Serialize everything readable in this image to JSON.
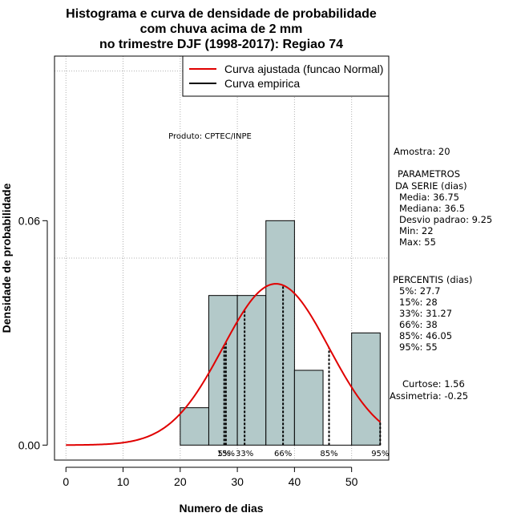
{
  "chart_data": {
    "type": "bar",
    "title_lines": [
      "Histograma e curva de densidade de probabilidade",
      "com chuva acima de 2 mm",
      "no trimestre DJF (1998-2017): Regiao 74"
    ],
    "xlabel": "Numero de dias",
    "ylabel": "Densidade de probabilidade",
    "xlim": [
      -2,
      56.5
    ],
    "ylim": [
      -0.004,
      0.104
    ],
    "x_ticks": [
      0,
      10,
      20,
      30,
      40,
      50
    ],
    "y_ticks": [
      0.0,
      0.06
    ],
    "y_tick_labels": [
      "0.00",
      "0.06"
    ],
    "grid_x": [
      0,
      10,
      20,
      30,
      40,
      50
    ],
    "grid_y": [
      0.05,
      0.1
    ],
    "bins": [
      {
        "x0": 20,
        "x1": 25,
        "density": 0.01
      },
      {
        "x0": 25,
        "x1": 30,
        "density": 0.04
      },
      {
        "x0": 30,
        "x1": 35,
        "density": 0.04
      },
      {
        "x0": 35,
        "x1": 40,
        "density": 0.06
      },
      {
        "x0": 40,
        "x1": 45,
        "density": 0.02
      },
      {
        "x0": 45,
        "x1": 50,
        "density": 0.0
      },
      {
        "x0": 50,
        "x1": 55,
        "density": 0.03
      }
    ],
    "fit_curve": {
      "name": "Curva ajustada (funcao Normal)",
      "mean": 36.75,
      "sd": 9.25,
      "x_start": 0,
      "x_end": 55,
      "color": "#e00000"
    },
    "empirical_curve": {
      "name": "Curva empirica",
      "color": "#000000"
    },
    "legend_position": "top-right",
    "percentile_lines": [
      {
        "label": "5%",
        "x": 27.7
      },
      {
        "label": "15%",
        "x": 28
      },
      {
        "label": "33%",
        "x": 31.27
      },
      {
        "label": "66%",
        "x": 38
      },
      {
        "label": "85%",
        "x": 46.05
      },
      {
        "label": "95%",
        "x": 55
      }
    ],
    "annotation": "Produto: CPTEC/INPE",
    "bar_fill": "#b3c9c9",
    "bar_stroke": "#000000"
  },
  "side_panel": {
    "amostra": "Amostra: 20",
    "param_title_1": "PARAMETROS",
    "param_title_2": "DA SERIE (dias)",
    "params": [
      "Media: 36.75",
      "Mediana: 36.5",
      "Desvio padrao: 9.25",
      "Min: 22",
      "Max: 55"
    ],
    "percentis_title": "PERCENTIS (dias)",
    "percentis": [
      "5%: 27.7",
      "15%: 28",
      "33%: 31.27",
      "66%: 38",
      "85%: 46.05",
      "95%: 55"
    ],
    "curtose": "Curtose: 1.56",
    "assimetria": "Assimetria: -0.25"
  }
}
